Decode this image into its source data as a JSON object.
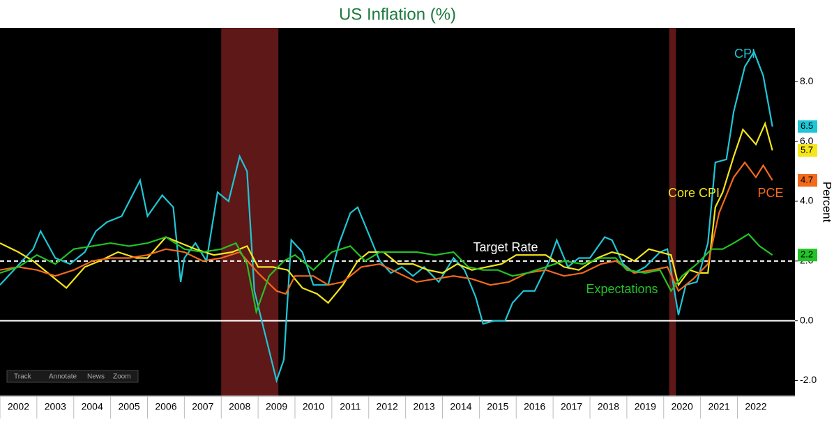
{
  "chart_data": {
    "type": "line",
    "title": "US Inflation (%)",
    "y_axis_label": "Percent",
    "xlim": [
      2002,
      2023.56
    ],
    "xticks": [
      2002,
      2003,
      2004,
      2005,
      2006,
      2007,
      2008,
      2009,
      2010,
      2011,
      2012,
      2013,
      2014,
      2015,
      2016,
      2017,
      2018,
      2019,
      2020,
      2021,
      2022
    ],
    "ylim": [
      -2.5,
      9.8
    ],
    "yticks": [
      {
        "value": -2,
        "label": "-2.0"
      },
      {
        "value": 0,
        "label": "0.0"
      },
      {
        "value": 2,
        "label": "2.0"
      },
      {
        "value": 4,
        "label": "4.0"
      },
      {
        "value": 6,
        "label": "6.0"
      },
      {
        "value": 8,
        "label": "8.0"
      }
    ],
    "zero_line": 0,
    "target": 2,
    "target_label": "Target Rate",
    "recessions": [
      [
        2008.0,
        2009.55
      ],
      [
        2020.15,
        2020.33
      ]
    ],
    "toolbar": [
      "Track",
      "Annotate",
      "News",
      "Zoom"
    ],
    "series": [
      {
        "name": "CPI",
        "color": "#1fc6d6",
        "x": [
          2002.0,
          2002.9,
          2003.1,
          2003.5,
          2003.9,
          2004.3,
          2004.6,
          2004.9,
          2005.3,
          2005.8,
          2006.0,
          2006.4,
          2006.7,
          2006.9,
          2007.0,
          2007.3,
          2007.6,
          2007.9,
          2008.2,
          2008.5,
          2008.7,
          2008.9,
          2009.2,
          2009.5,
          2009.7,
          2009.9,
          2010.2,
          2010.5,
          2010.9,
          2011.2,
          2011.5,
          2011.7,
          2012.0,
          2012.3,
          2012.6,
          2012.9,
          2013.2,
          2013.5,
          2013.9,
          2014.3,
          2014.6,
          2014.9,
          2015.1,
          2015.4,
          2015.7,
          2015.9,
          2016.2,
          2016.5,
          2016.9,
          2017.1,
          2017.4,
          2017.7,
          2018.0,
          2018.4,
          2018.6,
          2018.9,
          2019.2,
          2019.5,
          2019.9,
          2020.1,
          2020.4,
          2020.6,
          2020.9,
          2021.2,
          2021.4,
          2021.7,
          2021.9,
          2022.2,
          2022.45,
          2022.7,
          2022.95
        ],
        "values": [
          1.2,
          2.4,
          3.0,
          2.1,
          1.9,
          2.3,
          3.0,
          3.3,
          3.5,
          4.7,
          3.5,
          4.2,
          3.8,
          1.3,
          2.1,
          2.6,
          2.0,
          4.3,
          4.0,
          5.5,
          5.0,
          1.0,
          -0.5,
          -2.0,
          -1.3,
          2.7,
          2.3,
          1.2,
          1.2,
          2.6,
          3.6,
          3.8,
          2.9,
          2.0,
          1.6,
          1.8,
          1.5,
          1.8,
          1.3,
          2.1,
          1.7,
          0.8,
          -0.1,
          0.0,
          0.0,
          0.6,
          1.0,
          1.0,
          2.0,
          2.7,
          1.8,
          2.1,
          2.1,
          2.8,
          2.7,
          1.9,
          1.6,
          1.8,
          2.3,
          2.4,
          0.2,
          1.2,
          1.3,
          2.6,
          5.3,
          5.4,
          7.0,
          8.5,
          9.0,
          8.2,
          6.5
        ]
      },
      {
        "name": "Core CPI",
        "color": "#f5e61a",
        "x": [
          2002.0,
          2002.5,
          2002.9,
          2003.3,
          2003.8,
          2004.3,
          2004.7,
          2005.2,
          2005.7,
          2006.0,
          2006.5,
          2006.9,
          2007.3,
          2007.8,
          2008.3,
          2008.7,
          2009.0,
          2009.4,
          2009.8,
          2010.2,
          2010.6,
          2010.9,
          2011.3,
          2011.7,
          2012.0,
          2012.4,
          2012.8,
          2013.2,
          2013.6,
          2014.0,
          2014.4,
          2014.8,
          2015.2,
          2015.6,
          2016.0,
          2016.4,
          2016.8,
          2017.3,
          2017.7,
          2018.2,
          2018.6,
          2018.9,
          2019.2,
          2019.6,
          2019.9,
          2020.2,
          2020.4,
          2020.7,
          2020.95,
          2021.2,
          2021.4,
          2021.6,
          2021.9,
          2022.15,
          2022.5,
          2022.75,
          2022.95
        ],
        "values": [
          2.6,
          2.3,
          2.0,
          1.6,
          1.1,
          1.8,
          2.0,
          2.3,
          2.1,
          2.1,
          2.8,
          2.6,
          2.4,
          2.2,
          2.3,
          2.5,
          1.8,
          1.8,
          1.7,
          1.1,
          0.9,
          0.6,
          1.2,
          2.0,
          2.3,
          2.3,
          1.9,
          1.9,
          1.7,
          1.6,
          1.9,
          1.7,
          1.8,
          1.9,
          2.2,
          2.2,
          2.2,
          1.8,
          1.7,
          2.1,
          2.3,
          2.2,
          2.0,
          2.4,
          2.3,
          2.2,
          1.2,
          1.7,
          1.6,
          1.6,
          3.8,
          4.3,
          5.5,
          6.4,
          5.9,
          6.6,
          5.7
        ]
      },
      {
        "name": "PCE",
        "color": "#f26a1b",
        "x": [
          2002.0,
          2002.5,
          2003.0,
          2003.5,
          2004.0,
          2004.5,
          2005.0,
          2005.5,
          2006.0,
          2006.5,
          2007.0,
          2007.5,
          2008.0,
          2008.5,
          2009.0,
          2009.5,
          2009.75,
          2010.0,
          2010.5,
          2010.9,
          2011.3,
          2011.8,
          2012.3,
          2012.8,
          2013.3,
          2013.8,
          2014.3,
          2014.8,
          2015.3,
          2015.8,
          2016.3,
          2016.8,
          2017.3,
          2017.8,
          2018.3,
          2018.7,
          2019.2,
          2019.7,
          2020.1,
          2020.4,
          2020.8,
          2021.2,
          2021.5,
          2021.9,
          2022.2,
          2022.5,
          2022.7,
          2022.95
        ],
        "values": [
          1.7,
          1.8,
          1.7,
          1.5,
          1.7,
          2.0,
          2.1,
          2.1,
          2.2,
          2.4,
          2.3,
          2.0,
          2.1,
          2.3,
          1.6,
          1.0,
          0.9,
          1.5,
          1.5,
          1.2,
          1.3,
          1.8,
          1.9,
          1.6,
          1.3,
          1.4,
          1.5,
          1.4,
          1.2,
          1.3,
          1.6,
          1.7,
          1.5,
          1.6,
          1.9,
          2.0,
          1.6,
          1.7,
          1.8,
          1.0,
          1.4,
          1.9,
          3.6,
          4.8,
          5.3,
          4.8,
          5.2,
          4.7
        ]
      },
      {
        "name": "Expectations",
        "color": "#22c326",
        "x": [
          2002.0,
          2002.5,
          2003.0,
          2003.5,
          2004.0,
          2004.5,
          2005.0,
          2005.5,
          2006.0,
          2006.5,
          2007.0,
          2007.5,
          2008.0,
          2008.4,
          2008.7,
          2008.95,
          2009.3,
          2009.7,
          2010.0,
          2010.5,
          2011.0,
          2011.5,
          2011.9,
          2012.3,
          2012.8,
          2013.3,
          2013.8,
          2014.3,
          2014.7,
          2015.1,
          2015.5,
          2015.9,
          2016.3,
          2016.8,
          2017.3,
          2017.8,
          2018.3,
          2018.7,
          2019.0,
          2019.5,
          2019.9,
          2020.2,
          2020.5,
          2020.9,
          2021.3,
          2021.6,
          2021.9,
          2022.3,
          2022.6,
          2022.95
        ],
        "values": [
          1.6,
          1.8,
          2.2,
          1.9,
          2.4,
          2.5,
          2.6,
          2.5,
          2.6,
          2.8,
          2.4,
          2.3,
          2.4,
          2.6,
          1.9,
          0.3,
          1.5,
          2.0,
          2.2,
          1.7,
          2.3,
          2.5,
          2.0,
          2.3,
          2.3,
          2.3,
          2.2,
          2.3,
          1.8,
          1.7,
          1.7,
          1.5,
          1.6,
          1.8,
          2.0,
          1.9,
          2.1,
          2.1,
          1.7,
          1.6,
          1.7,
          1.0,
          1.5,
          1.9,
          2.4,
          2.4,
          2.6,
          2.9,
          2.5,
          2.2
        ]
      }
    ]
  }
}
